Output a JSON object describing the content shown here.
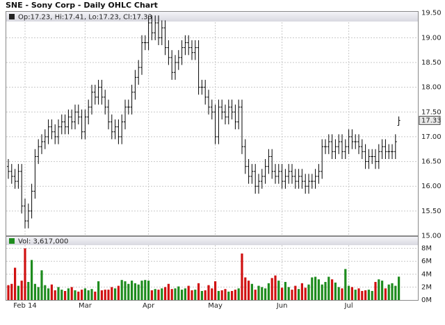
{
  "chart_data": {
    "type": "ohlc",
    "title": "SNE - Sony Corp - Daily OHLC Chart",
    "legend_text": "Op:17.23, Hi:17.41, Lo:17.23, Cl:17.33",
    "categories": [
      null,
      null,
      null,
      null,
      null,
      "Feb 14",
      null,
      null,
      null,
      null,
      null,
      null,
      null,
      null,
      null,
      null,
      null,
      null,
      null,
      null,
      null,
      null,
      null,
      "Mar",
      null,
      null,
      null,
      null,
      null,
      null,
      null,
      null,
      null,
      null,
      null,
      null,
      null,
      null,
      null,
      null,
      null,
      null,
      "Apr",
      null,
      null,
      null,
      null,
      null,
      null,
      null,
      null,
      null,
      null,
      null,
      null,
      null,
      null,
      null,
      null,
      null,
      null,
      null,
      "May",
      null,
      null,
      null,
      null,
      null,
      null,
      null,
      null,
      null,
      null,
      null,
      null,
      null,
      null,
      null,
      null,
      null,
      null,
      null,
      "Jun",
      null,
      null,
      null,
      null,
      null,
      null,
      null,
      null,
      null,
      null,
      null,
      null,
      null,
      null,
      null,
      null,
      null,
      null,
      null,
      "Jul",
      null,
      null,
      null,
      null,
      null,
      null,
      null,
      null,
      null,
      null,
      null,
      null,
      null,
      null,
      null
    ],
    "open": [
      16.4,
      16.3,
      16.2,
      16.1,
      16.3,
      15.6,
      15.3,
      15.5,
      15.9,
      16.6,
      16.8,
      16.9,
      17.0,
      17.2,
      17.1,
      17.0,
      17.2,
      17.3,
      17.2,
      17.4,
      17.3,
      17.5,
      17.4,
      17.1,
      17.4,
      17.6,
      17.9,
      17.8,
      18.0,
      17.8,
      17.6,
      17.3,
      17.1,
      17.2,
      17.0,
      17.3,
      17.6,
      17.6,
      17.9,
      18.2,
      18.4,
      18.9,
      18.9,
      19.3,
      19.1,
      19.3,
      19.0,
      19.2,
      18.8,
      18.6,
      18.3,
      18.5,
      18.6,
      18.8,
      18.9,
      18.8,
      18.7,
      18.8,
      18.0,
      18.0,
      17.8,
      17.6,
      17.5,
      17.0,
      17.6,
      17.5,
      17.4,
      17.6,
      17.5,
      17.3,
      17.6,
      16.8,
      16.4,
      16.2,
      16.3,
      16.0,
      16.1,
      16.2,
      16.4,
      16.6,
      16.3,
      16.2,
      16.3,
      16.1,
      16.2,
      16.3,
      16.2,
      16.1,
      16.2,
      16.1,
      16.0,
      16.1,
      16.1,
      16.2,
      16.3,
      16.8,
      16.8,
      16.9,
      16.7,
      16.8,
      16.9,
      16.7,
      16.8,
      17.0,
      16.9,
      16.9,
      16.8,
      16.7,
      16.5,
      16.6,
      16.6,
      16.5,
      16.7,
      16.8,
      16.7,
      16.7,
      16.7,
      17.23
    ],
    "high": [
      16.55,
      16.45,
      16.35,
      16.45,
      16.45,
      15.75,
      15.65,
      16.05,
      16.75,
      16.95,
      17.05,
      17.15,
      17.35,
      17.35,
      17.25,
      17.35,
      17.45,
      17.45,
      17.55,
      17.55,
      17.65,
      17.65,
      17.55,
      17.55,
      17.75,
      18.05,
      18.05,
      18.15,
      18.15,
      17.95,
      17.75,
      17.45,
      17.35,
      17.35,
      17.45,
      17.75,
      17.75,
      18.05,
      18.35,
      18.55,
      19.05,
      19.05,
      19.45,
      19.45,
      19.45,
      19.45,
      19.35,
      19.35,
      18.95,
      18.75,
      18.65,
      18.75,
      18.95,
      19.05,
      19.05,
      18.95,
      18.95,
      18.95,
      18.15,
      18.15,
      17.95,
      17.75,
      17.65,
      17.75,
      17.75,
      17.65,
      17.75,
      17.75,
      17.65,
      17.75,
      17.75,
      16.95,
      16.55,
      16.45,
      16.45,
      16.25,
      16.35,
      16.55,
      16.75,
      16.75,
      16.45,
      16.45,
      16.45,
      16.35,
      16.45,
      16.45,
      16.35,
      16.35,
      16.35,
      16.25,
      16.25,
      16.25,
      16.35,
      16.45,
      16.95,
      16.95,
      17.05,
      17.05,
      16.95,
      17.05,
      17.05,
      16.95,
      17.15,
      17.15,
      17.05,
      17.05,
      16.95,
      16.85,
      16.75,
      16.75,
      16.75,
      16.85,
      16.95,
      16.95,
      16.85,
      16.85,
      17.05,
      17.41
    ],
    "low": [
      16.15,
      16.05,
      15.95,
      15.95,
      15.45,
      15.15,
      15.15,
      15.35,
      15.75,
      16.45,
      16.65,
      16.75,
      16.85,
      16.95,
      16.85,
      16.85,
      17.05,
      17.05,
      17.05,
      17.15,
      17.15,
      17.25,
      16.95,
      16.95,
      17.25,
      17.45,
      17.65,
      17.65,
      17.65,
      17.45,
      17.15,
      16.95,
      16.95,
      16.85,
      16.85,
      17.15,
      17.45,
      17.45,
      17.75,
      18.05,
      18.25,
      18.75,
      18.75,
      18.95,
      18.95,
      18.85,
      18.85,
      18.65,
      18.45,
      18.15,
      18.15,
      18.35,
      18.45,
      18.65,
      18.65,
      18.55,
      18.55,
      17.85,
      17.85,
      17.65,
      17.45,
      17.35,
      16.85,
      16.85,
      17.35,
      17.25,
      17.25,
      17.35,
      17.15,
      17.15,
      16.65,
      16.25,
      16.05,
      16.05,
      15.85,
      15.85,
      15.95,
      16.05,
      16.25,
      16.15,
      16.05,
      16.05,
      15.95,
      15.95,
      16.05,
      16.05,
      15.95,
      15.95,
      15.95,
      15.85,
      15.85,
      15.95,
      15.95,
      16.05,
      16.15,
      16.65,
      16.65,
      16.55,
      16.55,
      16.65,
      16.55,
      16.55,
      16.65,
      16.75,
      16.75,
      16.65,
      16.55,
      16.35,
      16.35,
      16.45,
      16.35,
      16.35,
      16.55,
      16.55,
      16.55,
      16.55,
      16.55,
      17.23
    ],
    "close": [
      16.3,
      16.2,
      16.1,
      16.3,
      15.6,
      15.3,
      15.5,
      15.9,
      16.6,
      16.8,
      16.9,
      17.0,
      17.2,
      17.1,
      17.0,
      17.2,
      17.3,
      17.2,
      17.4,
      17.3,
      17.5,
      17.4,
      17.1,
      17.4,
      17.6,
      17.9,
      17.8,
      18.0,
      17.8,
      17.6,
      17.3,
      17.1,
      17.2,
      17.0,
      17.3,
      17.6,
      17.6,
      17.9,
      18.2,
      18.4,
      18.9,
      18.9,
      19.3,
      19.1,
      19.3,
      19.0,
      19.2,
      18.8,
      18.6,
      18.3,
      18.5,
      18.6,
      18.8,
      18.9,
      18.8,
      18.7,
      18.8,
      18.0,
      18.0,
      17.8,
      17.6,
      17.5,
      17.0,
      17.6,
      17.5,
      17.4,
      17.6,
      17.5,
      17.3,
      17.6,
      16.8,
      16.4,
      16.2,
      16.3,
      16.0,
      16.1,
      16.2,
      16.4,
      16.6,
      16.3,
      16.2,
      16.3,
      16.1,
      16.2,
      16.3,
      16.2,
      16.1,
      16.2,
      16.1,
      16.0,
      16.1,
      16.1,
      16.2,
      16.3,
      16.8,
      16.8,
      16.9,
      16.7,
      16.8,
      16.9,
      16.7,
      16.8,
      17.0,
      16.9,
      16.9,
      16.8,
      16.7,
      16.5,
      16.6,
      16.6,
      16.5,
      16.7,
      16.8,
      16.7,
      16.7,
      16.7,
      16.9,
      17.33
    ],
    "color": "#000000",
    "ylim": [
      15,
      19.65
    ],
    "yticks": [
      {
        "value": 15,
        "label": "15.00"
      },
      {
        "value": 15.5,
        "label": "15.50"
      },
      {
        "value": 16,
        "label": "16.00"
      },
      {
        "value": 16.5,
        "label": "16.50"
      },
      {
        "value": 17,
        "label": "17.00"
      },
      {
        "value": 17.5,
        "label": "17.50"
      },
      {
        "value": 18,
        "label": "18.00"
      },
      {
        "value": 18.5,
        "label": "18.50"
      },
      {
        "value": 19,
        "label": "19.00"
      },
      {
        "value": 19.5,
        "label": "19.50"
      }
    ],
    "grid": true,
    "volume": {
      "label": "Vol: 3,617,000",
      "up_color": "#1e8c1e",
      "down_color": "#d01010",
      "values": [
        2300000,
        2500000,
        5000000,
        2200000,
        3000000,
        8000000,
        2800000,
        6200000,
        2500000,
        2000000,
        4600000,
        2300000,
        1800000,
        2400000,
        1500000,
        2000000,
        1600000,
        1400000,
        1800000,
        2000000,
        1500000,
        1300000,
        1600000,
        1800000,
        1500000,
        1700000,
        1300000,
        2900000,
        1500000,
        1600000,
        1600000,
        2000000,
        1800000,
        2200000,
        3100000,
        2900000,
        2500000,
        3000000,
        2600000,
        2400000,
        3000000,
        3100000,
        3000000,
        1500000,
        1700000,
        1600000,
        1800000,
        2000000,
        2500000,
        1700000,
        1800000,
        2100000,
        1600000,
        1800000,
        2200000,
        1500000,
        1600000,
        2600000,
        1400000,
        1500000,
        2300000,
        1800000,
        2900000,
        1400000,
        1500000,
        1700000,
        1300000,
        1400000,
        1600000,
        1800000,
        7200000,
        3500000,
        3000000,
        2500000,
        1600000,
        2200000,
        2000000,
        1800000,
        2600000,
        3400000,
        3800000,
        3000000,
        1900000,
        2800000,
        2000000,
        1600000,
        2200000,
        1700000,
        2600000,
        1900000,
        2400000,
        3500000,
        3600000,
        3200000,
        2400000,
        2800000,
        3600000,
        3200000,
        2700000,
        2000000,
        1800000,
        4800000,
        2200000,
        2000000,
        1600000,
        1800000,
        1400000,
        1500000,
        1600000,
        1400000,
        2800000,
        3200000,
        3000000,
        1800000,
        2400000,
        2600000,
        2200000,
        3617000
      ],
      "ylim": [
        0,
        8500000
      ],
      "yticks": [
        {
          "value": 0,
          "label": "0M"
        },
        {
          "value": 2000000,
          "label": "2M"
        },
        {
          "value": 4000000,
          "label": "4M"
        },
        {
          "value": 6000000,
          "label": "6M"
        },
        {
          "value": 8000000,
          "label": "8M"
        }
      ]
    }
  }
}
